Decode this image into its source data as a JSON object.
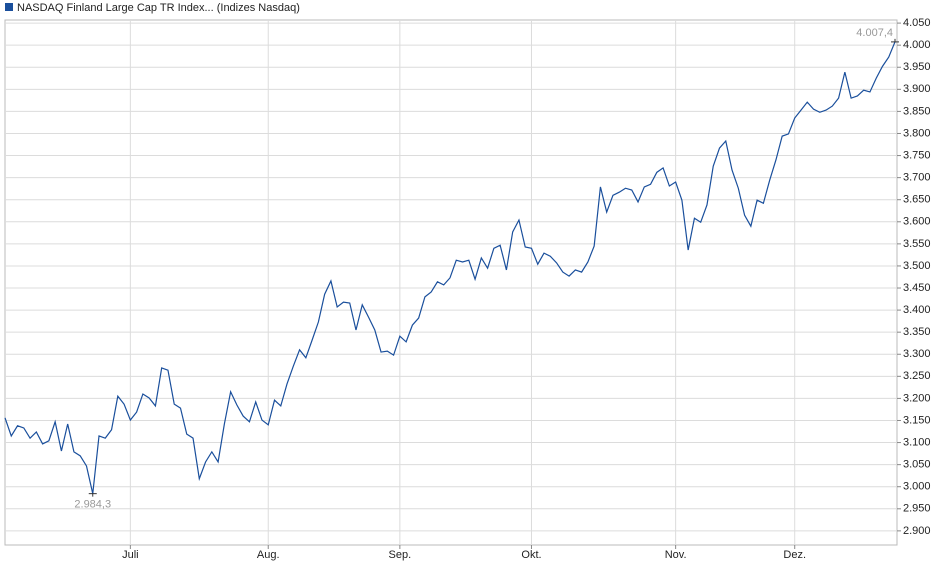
{
  "chart_data": {
    "type": "line",
    "categories": [
      null,
      null,
      null,
      null,
      null,
      null,
      null,
      null,
      null,
      null,
      null,
      null,
      null,
      null,
      null,
      null,
      null,
      null,
      null,
      null,
      "Juli",
      null,
      null,
      null,
      null,
      null,
      null,
      null,
      null,
      null,
      null,
      null,
      null,
      null,
      null,
      null,
      null,
      null,
      null,
      null,
      null,
      null,
      "Aug.",
      null,
      null,
      null,
      null,
      null,
      null,
      null,
      null,
      null,
      null,
      null,
      null,
      null,
      null,
      null,
      null,
      null,
      null,
      null,
      null,
      "Sep.",
      null,
      null,
      null,
      null,
      null,
      null,
      null,
      null,
      null,
      null,
      null,
      null,
      null,
      null,
      null,
      null,
      null,
      null,
      null,
      null,
      "Okt.",
      null,
      null,
      null,
      null,
      null,
      null,
      null,
      null,
      null,
      null,
      null,
      null,
      null,
      null,
      null,
      null,
      null,
      null,
      null,
      null,
      null,
      null,
      "Nov.",
      null,
      null,
      null,
      null,
      null,
      null,
      null,
      null,
      null,
      null,
      null,
      null,
      null,
      null,
      null,
      null,
      null,
      null,
      "Dez.",
      null,
      null,
      null,
      null,
      null,
      null,
      null,
      null,
      null,
      null,
      null,
      null,
      null,
      null,
      null,
      null
    ],
    "series": [
      {
        "name": "NASDAQ Finland Large Cap TR Index... (Indizes Nasdaq)",
        "color": "#1a4f9c",
        "values": [
          3156,
          3115,
          3138,
          3133,
          3110,
          3124,
          3097,
          3104,
          3147,
          3081,
          3142,
          3079,
          3070,
          3047,
          2984.3,
          3115,
          3110,
          3129,
          3205,
          3187,
          3151,
          3169,
          3210,
          3201,
          3183,
          3269,
          3264,
          3187,
          3178,
          3119,
          3110,
          3018,
          3056,
          3079,
          3056,
          3142,
          3215,
          3185,
          3160,
          3147,
          3192,
          3151,
          3140,
          3196,
          3183,
          3233,
          3273,
          3310,
          3292,
          3332,
          3373,
          3436,
          3466,
          3407,
          3418,
          3416,
          3355,
          3412,
          3384,
          3355,
          3305,
          3307,
          3298,
          3341,
          3328,
          3366,
          3382,
          3430,
          3441,
          3464,
          3457,
          3473,
          3513,
          3509,
          3513,
          3470,
          3518,
          3495,
          3540,
          3547,
          3491,
          3577,
          3604,
          3543,
          3540,
          3504,
          3529,
          3522,
          3507,
          3486,
          3477,
          3491,
          3486,
          3509,
          3545,
          3679,
          3622,
          3660,
          3667,
          3676,
          3672,
          3645,
          3679,
          3685,
          3712,
          3722,
          3681,
          3690,
          3649,
          3536,
          3608,
          3599,
          3638,
          3726,
          3767,
          3783,
          3717,
          3676,
          3615,
          3590,
          3649,
          3642,
          3694,
          3740,
          3794,
          3799,
          3835,
          3853,
          3871,
          3855,
          3848,
          3853,
          3862,
          3880,
          3939,
          3880,
          3885,
          3898,
          3894,
          3925,
          3952,
          3973,
          4007.4
        ]
      }
    ],
    "annotations": [
      {
        "value": 4007.4,
        "label": "4.007,4"
      },
      {
        "value": 2984.3,
        "label": "2.984,3"
      }
    ],
    "ylim": [
      2868,
      4057
    ],
    "yticks": [
      {
        "value": 2900,
        "label": "2.900"
      },
      {
        "value": 2950,
        "label": "2.950"
      },
      {
        "value": 3000,
        "label": "3.000"
      },
      {
        "value": 3050,
        "label": "3.050"
      },
      {
        "value": 3100,
        "label": "3.100"
      },
      {
        "value": 3150,
        "label": "3.150"
      },
      {
        "value": 3200,
        "label": "3.200"
      },
      {
        "value": 3250,
        "label": "3.250"
      },
      {
        "value": 3300,
        "label": "3.300"
      },
      {
        "value": 3350,
        "label": "3.350"
      },
      {
        "value": 3400,
        "label": "3.400"
      },
      {
        "value": 3450,
        "label": "3.450"
      },
      {
        "value": 3500,
        "label": "3.500"
      },
      {
        "value": 3550,
        "label": "3.550"
      },
      {
        "value": 3600,
        "label": "3.600"
      },
      {
        "value": 3650,
        "label": "3.650"
      },
      {
        "value": 3700,
        "label": "3.700"
      },
      {
        "value": 3750,
        "label": "3.750"
      },
      {
        "value": 3800,
        "label": "3.800"
      },
      {
        "value": 3850,
        "label": "3.850"
      },
      {
        "value": 3900,
        "label": "3.900"
      },
      {
        "value": 3950,
        "label": "3.950"
      },
      {
        "value": 4000,
        "label": "4.000"
      },
      {
        "value": 4050,
        "label": "4.050"
      }
    ],
    "grid": true
  }
}
